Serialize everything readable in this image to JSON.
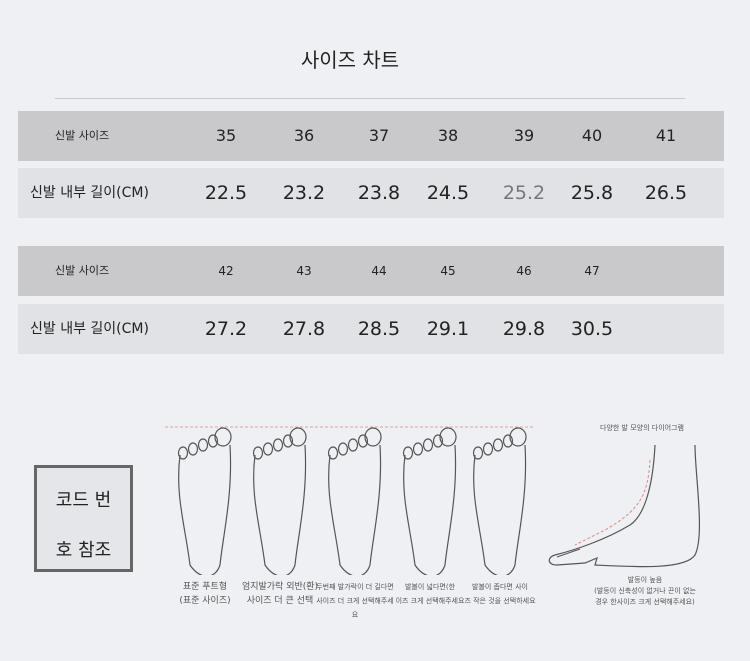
{
  "title": "사이즈 차트",
  "table1": {
    "size_label": "신발 사이즈",
    "length_label": "신발 내부 길이(CM)",
    "sizes": [
      "35",
      "36",
      "37",
      "38",
      "39",
      "40",
      "41"
    ],
    "lengths": [
      "22.5",
      "23.2",
      "23.8",
      "24.5",
      "25.2",
      "25.8",
      "26.5"
    ]
  },
  "table2": {
    "size_label": "신발 사이즈",
    "length_label": "신발 내부 길이(CM)",
    "sizes": [
      "42",
      "43",
      "44",
      "45",
      "46",
      "47"
    ],
    "lengths": [
      "27.2",
      "27.8",
      "28.5",
      "29.1",
      "29.8",
      "30.5"
    ]
  },
  "code_box": {
    "line1": "코드 번",
    "line2": "호 참조"
  },
  "feet": [
    {
      "line1": "표준 푸트형",
      "line2": "(표준 사이즈)"
    },
    {
      "line1": "엄지발가락 외반(환)",
      "line2": "사이즈 더 큰 선택"
    },
    {
      "line1": "두번째 발가락이 더 길다면",
      "line2": "사이즈 더 크게 선택해주세요"
    },
    {
      "line1": "발볼이 넓다면(한",
      "line2": "이즈 크게 선택해주세요"
    },
    {
      "line1": "발볼이 좁다면 사이",
      "line2": "즈 작은 것을 선택하세요"
    }
  ],
  "side_view": {
    "title": "다양한 발 모양의 다이어그램",
    "line1": "발등이 높음",
    "line2": "(발등이 신축성이 없거나 끈이 없는",
    "line3": "경우 한사이즈 크게 선택해주세요)"
  }
}
